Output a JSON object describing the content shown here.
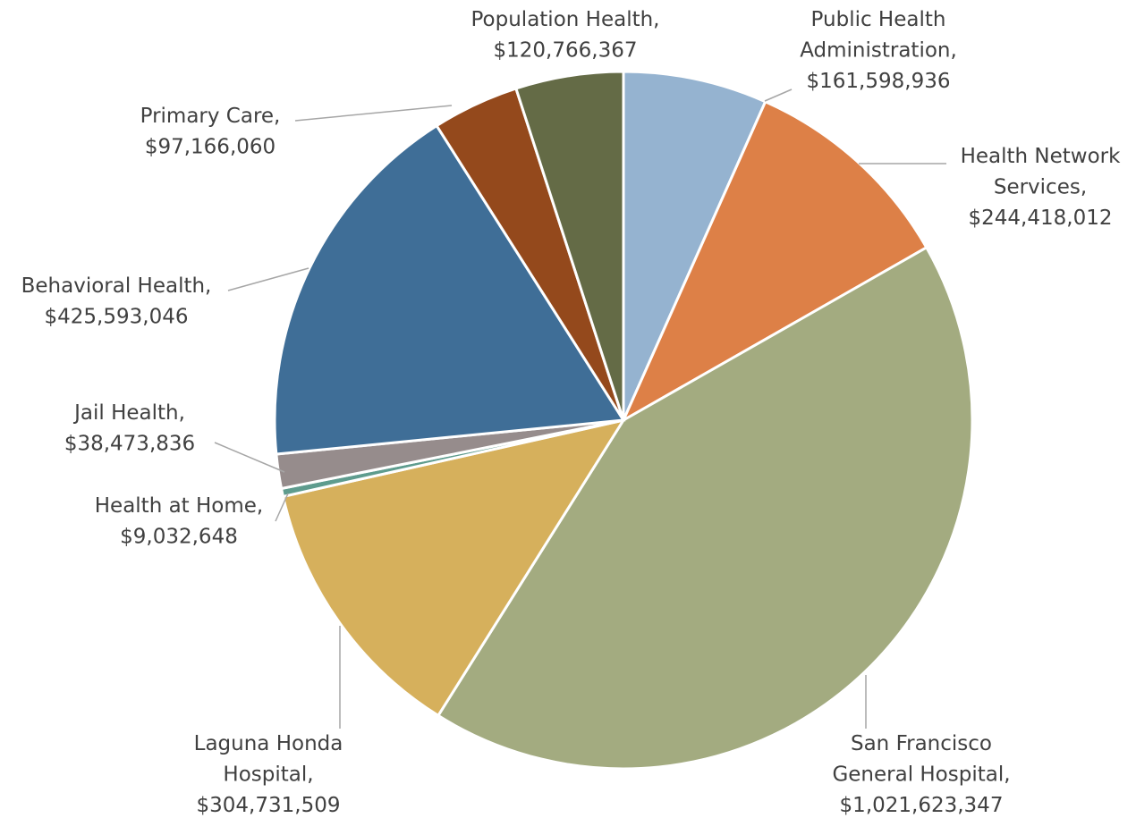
{
  "chart_data": {
    "type": "pie",
    "categories": [
      "Public Health\nAdministration,",
      "Health Network\nServices,",
      "San Francisco\nGeneral Hospital,",
      "Laguna Honda\nHospital,",
      "Health at Home,",
      "Jail Health,",
      "Behavioral Health,",
      "Primary Care,",
      "Population Health,"
    ],
    "values": [
      161598936,
      244418012,
      1021623347,
      304731509,
      9032648,
      38473836,
      425593046,
      97166060,
      120766367
    ],
    "value_labels": [
      "$161,598,936",
      "$244,418,012",
      "$1,021,623,347",
      "$304,731,509",
      "$9,032,648",
      "$38,473,836",
      "$425,593,046",
      "$97,166,060",
      "$120,766,367"
    ],
    "colors": [
      "#95b3d0",
      "#dd8047",
      "#a3ab80",
      "#d6b05c",
      "#5e9c8e",
      "#968c8c",
      "#3f6e97",
      "#94491c",
      "#646b46"
    ]
  }
}
